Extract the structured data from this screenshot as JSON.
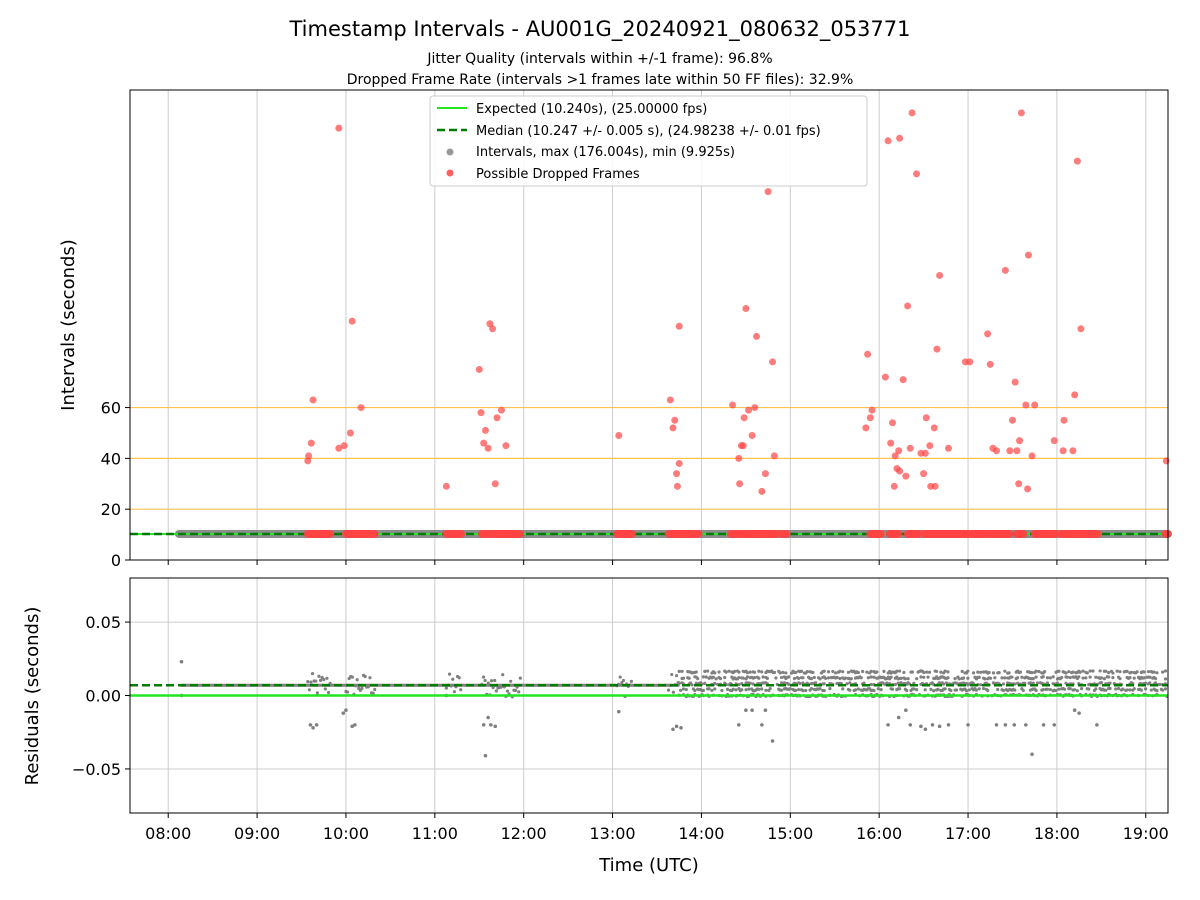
{
  "chart_data": {
    "title": "Timestamp Intervals - AU001G_20240921_080632_053771",
    "subtitle_lines": [
      "Jitter Quality (intervals within +/-1 frame): 96.8%",
      "Dropped Frame Rate (intervals >1 frames late within 50 FF files): 32.9%"
    ],
    "xlabel": "Time (UTC)",
    "x_ticks": [
      "08:00",
      "09:00",
      "10:00",
      "11:00",
      "12:00",
      "13:00",
      "14:00",
      "15:00",
      "16:00",
      "17:00",
      "18:00",
      "19:00"
    ],
    "xlim_hours": [
      7.57,
      19.25
    ],
    "top_panel": {
      "type": "scatter",
      "ylabel": "Intervals (seconds)",
      "y_ticks": [
        0,
        20,
        40,
        60
      ],
      "ylim": [
        0,
        185
      ],
      "reference_lines": [
        20,
        40,
        60
      ],
      "legend": [
        {
          "label": "Expected (10.240s), (25.00000 fps)",
          "kind": "line-solid",
          "color": "#22e622"
        },
        {
          "label": "Median (10.247 +/- 0.005 s), (24.98238 +/- 0.01 fps)",
          "kind": "line-dashed",
          "color": "#007a00"
        },
        {
          "label": "Intervals, max (176.004s), min (9.925s)",
          "kind": "dot",
          "color": "#999999"
        },
        {
          "label": "Possible Dropped Frames",
          "kind": "dot",
          "color": "#ff4444"
        }
      ],
      "expected_value": 10.24,
      "median_value": 10.247,
      "intervals_span_hours": [
        8.12,
        19.25
      ],
      "dropped_frames": [
        {
          "x": 9.57,
          "y": 39.0
        },
        {
          "x": 9.58,
          "y": 41.0
        },
        {
          "x": 9.61,
          "y": 46.0
        },
        {
          "x": 9.63,
          "y": 63.0
        },
        {
          "x": 9.92,
          "y": 44.0
        },
        {
          "x": 9.92,
          "y": 170.0
        },
        {
          "x": 9.98,
          "y": 45.0
        },
        {
          "x": 10.05,
          "y": 50.0
        },
        {
          "x": 10.07,
          "y": 94.0
        },
        {
          "x": 10.17,
          "y": 60.0
        },
        {
          "x": 11.13,
          "y": 29.0
        },
        {
          "x": 11.5,
          "y": 75.0
        },
        {
          "x": 11.52,
          "y": 58.0
        },
        {
          "x": 11.55,
          "y": 46.0
        },
        {
          "x": 11.57,
          "y": 51.0
        },
        {
          "x": 11.6,
          "y": 44.0
        },
        {
          "x": 11.62,
          "y": 93.0
        },
        {
          "x": 11.65,
          "y": 91.0
        },
        {
          "x": 11.68,
          "y": 30.0
        },
        {
          "x": 11.7,
          "y": 56.0
        },
        {
          "x": 11.75,
          "y": 59.0
        },
        {
          "x": 11.8,
          "y": 45.0
        },
        {
          "x": 13.07,
          "y": 49.0
        },
        {
          "x": 13.65,
          "y": 63.0
        },
        {
          "x": 13.68,
          "y": 52.0
        },
        {
          "x": 13.7,
          "y": 55.0
        },
        {
          "x": 13.72,
          "y": 34.0
        },
        {
          "x": 13.73,
          "y": 29.0
        },
        {
          "x": 13.75,
          "y": 38.0
        },
        {
          "x": 13.75,
          "y": 92.0
        },
        {
          "x": 14.35,
          "y": 61.0
        },
        {
          "x": 14.42,
          "y": 40.0
        },
        {
          "x": 14.43,
          "y": 30.0
        },
        {
          "x": 14.45,
          "y": 45.0
        },
        {
          "x": 14.47,
          "y": 45.0
        },
        {
          "x": 14.48,
          "y": 56.0
        },
        {
          "x": 14.5,
          "y": 99.0
        },
        {
          "x": 14.53,
          "y": 59.0
        },
        {
          "x": 14.57,
          "y": 49.0
        },
        {
          "x": 14.6,
          "y": 60.0
        },
        {
          "x": 14.62,
          "y": 88.0
        },
        {
          "x": 14.68,
          "y": 27.0
        },
        {
          "x": 14.72,
          "y": 34.0
        },
        {
          "x": 14.75,
          "y": 145.0
        },
        {
          "x": 14.8,
          "y": 78.0
        },
        {
          "x": 14.82,
          "y": 41.0
        },
        {
          "x": 15.85,
          "y": 52.0
        },
        {
          "x": 15.87,
          "y": 81.0
        },
        {
          "x": 15.9,
          "y": 56.0
        },
        {
          "x": 15.92,
          "y": 59.0
        },
        {
          "x": 16.07,
          "y": 72.0
        },
        {
          "x": 16.1,
          "y": 165.0
        },
        {
          "x": 16.13,
          "y": 46.0
        },
        {
          "x": 16.15,
          "y": 54.0
        },
        {
          "x": 16.17,
          "y": 29.0
        },
        {
          "x": 16.18,
          "y": 41.0
        },
        {
          "x": 16.2,
          "y": 36.0
        },
        {
          "x": 16.22,
          "y": 43.0
        },
        {
          "x": 16.23,
          "y": 35.0
        },
        {
          "x": 16.23,
          "y": 166.0
        },
        {
          "x": 16.27,
          "y": 71.0
        },
        {
          "x": 16.3,
          "y": 33.0
        },
        {
          "x": 16.32,
          "y": 100.0
        },
        {
          "x": 16.35,
          "y": 44.0
        },
        {
          "x": 16.37,
          "y": 176.0
        },
        {
          "x": 16.42,
          "y": 152.0
        },
        {
          "x": 16.47,
          "y": 42.0
        },
        {
          "x": 16.5,
          "y": 34.0
        },
        {
          "x": 16.52,
          "y": 42.0
        },
        {
          "x": 16.53,
          "y": 56.0
        },
        {
          "x": 16.57,
          "y": 45.0
        },
        {
          "x": 16.58,
          "y": 29.0
        },
        {
          "x": 16.62,
          "y": 52.0
        },
        {
          "x": 16.63,
          "y": 29.0
        },
        {
          "x": 16.65,
          "y": 83.0
        },
        {
          "x": 16.68,
          "y": 112.0
        },
        {
          "x": 16.78,
          "y": 44.0
        },
        {
          "x": 16.97,
          "y": 78.0
        },
        {
          "x": 17.02,
          "y": 78.0
        },
        {
          "x": 17.22,
          "y": 89.0
        },
        {
          "x": 17.25,
          "y": 77.0
        },
        {
          "x": 17.28,
          "y": 44.0
        },
        {
          "x": 17.32,
          "y": 43.0
        },
        {
          "x": 17.42,
          "y": 114.0
        },
        {
          "x": 17.47,
          "y": 43.0
        },
        {
          "x": 17.5,
          "y": 55.0
        },
        {
          "x": 17.53,
          "y": 70.0
        },
        {
          "x": 17.55,
          "y": 43.0
        },
        {
          "x": 17.57,
          "y": 30.0
        },
        {
          "x": 17.58,
          "y": 47.0
        },
        {
          "x": 17.6,
          "y": 176.0
        },
        {
          "x": 17.65,
          "y": 61.0
        },
        {
          "x": 17.67,
          "y": 28.0
        },
        {
          "x": 17.68,
          "y": 120.0
        },
        {
          "x": 17.72,
          "y": 41.0
        },
        {
          "x": 17.75,
          "y": 61.0
        },
        {
          "x": 17.97,
          "y": 47.0
        },
        {
          "x": 18.07,
          "y": 43.0
        },
        {
          "x": 18.08,
          "y": 55.0
        },
        {
          "x": 18.18,
          "y": 43.0
        },
        {
          "x": 18.2,
          "y": 65.0
        },
        {
          "x": 18.23,
          "y": 157.0
        },
        {
          "x": 18.27,
          "y": 91.0
        },
        {
          "x": 19.23,
          "y": 39.0
        }
      ],
      "dropped_at_baseline_ranges": [
        [
          9.57,
          9.83
        ],
        [
          10.0,
          10.33
        ],
        [
          11.13,
          11.3
        ],
        [
          11.53,
          11.62
        ],
        [
          11.65,
          11.97
        ],
        [
          13.05,
          13.22
        ],
        [
          13.63,
          13.78
        ],
        [
          13.8,
          13.97
        ],
        [
          14.33,
          14.42
        ],
        [
          14.45,
          14.63
        ],
        [
          14.65,
          14.85
        ],
        [
          14.9,
          14.97
        ],
        [
          15.9,
          16.02
        ],
        [
          16.12,
          16.22
        ],
        [
          16.32,
          16.45
        ],
        [
          16.5,
          17.02
        ],
        [
          17.05,
          17.22
        ],
        [
          17.25,
          17.47
        ],
        [
          17.55,
          17.63
        ],
        [
          17.75,
          18.0
        ],
        [
          18.05,
          18.2
        ],
        [
          18.22,
          18.47
        ],
        [
          19.22,
          19.25
        ]
      ]
    },
    "bottom_panel": {
      "type": "scatter",
      "ylabel": "Residuals (seconds)",
      "y_ticks": [
        0.05,
        0.0,
        -0.05
      ],
      "y_tick_labels": [
        "0.05",
        "0.00",
        "−0.05"
      ],
      "ylim": [
        -0.08,
        0.08
      ],
      "expected_residual": 0.0,
      "median_residual": 0.007,
      "residual_levels_before_13_45": [
        0.007
      ],
      "residual_levels_after_13_45": [
        0.0,
        0.004,
        0.008,
        0.012,
        0.016
      ],
      "outliers": [
        {
          "x": 8.15,
          "y": 0.023
        },
        {
          "x": 8.15,
          "y": 0.0
        },
        {
          "x": 9.6,
          "y": -0.02
        },
        {
          "x": 9.63,
          "y": -0.022
        },
        {
          "x": 9.67,
          "y": -0.02
        },
        {
          "x": 9.97,
          "y": -0.012
        },
        {
          "x": 10.0,
          "y": -0.01
        },
        {
          "x": 10.07,
          "y": -0.021
        },
        {
          "x": 10.1,
          "y": -0.02
        },
        {
          "x": 11.13,
          "y": 0.0
        },
        {
          "x": 11.55,
          "y": -0.02
        },
        {
          "x": 11.57,
          "y": -0.041
        },
        {
          "x": 11.6,
          "y": -0.015
        },
        {
          "x": 11.63,
          "y": -0.02
        },
        {
          "x": 11.68,
          "y": -0.021
        },
        {
          "x": 13.07,
          "y": -0.011
        },
        {
          "x": 13.68,
          "y": -0.023
        },
        {
          "x": 13.72,
          "y": -0.021
        },
        {
          "x": 13.77,
          "y": -0.022
        },
        {
          "x": 14.42,
          "y": -0.02
        },
        {
          "x": 14.5,
          "y": -0.01
        },
        {
          "x": 14.57,
          "y": -0.01
        },
        {
          "x": 14.68,
          "y": -0.02
        },
        {
          "x": 14.72,
          "y": -0.01
        },
        {
          "x": 14.8,
          "y": -0.031
        },
        {
          "x": 16.1,
          "y": -0.02
        },
        {
          "x": 16.22,
          "y": -0.015
        },
        {
          "x": 16.3,
          "y": -0.01
        },
        {
          "x": 16.35,
          "y": -0.02
        },
        {
          "x": 16.47,
          "y": -0.021
        },
        {
          "x": 16.52,
          "y": -0.023
        },
        {
          "x": 16.6,
          "y": -0.02
        },
        {
          "x": 16.68,
          "y": -0.021
        },
        {
          "x": 16.78,
          "y": -0.02
        },
        {
          "x": 17.0,
          "y": -0.02
        },
        {
          "x": 17.32,
          "y": -0.02
        },
        {
          "x": 17.42,
          "y": -0.02
        },
        {
          "x": 17.52,
          "y": -0.02
        },
        {
          "x": 17.65,
          "y": -0.02
        },
        {
          "x": 17.72,
          "y": -0.04
        },
        {
          "x": 17.85,
          "y": -0.02
        },
        {
          "x": 17.97,
          "y": -0.02
        },
        {
          "x": 18.2,
          "y": -0.01
        },
        {
          "x": 18.25,
          "y": -0.012
        },
        {
          "x": 18.45,
          "y": -0.02
        }
      ]
    },
    "colors": {
      "expected": "#22e622",
      "median": "#007a00",
      "intervals": "#808080",
      "dropped": "#ff4444",
      "reference": "#ffc44d",
      "grid": "#cccccc"
    }
  }
}
